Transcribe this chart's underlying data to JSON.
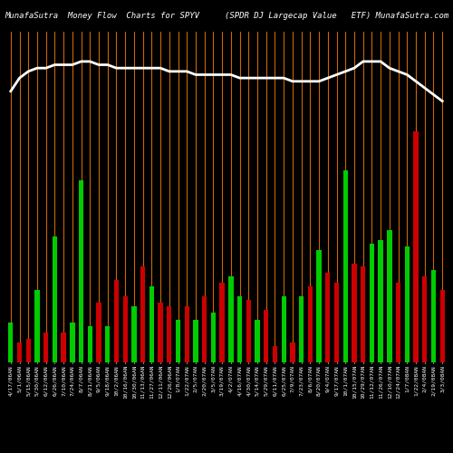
{
  "title_left": "MunafaSutra  Money Flow  Charts for SPYV",
  "title_right": "(SPDR DJ Largecap Value   ETF) MunafaSutra.com",
  "background_color": "#000000",
  "bar_colors": [
    "green",
    "red",
    "red",
    "green",
    "red",
    "green",
    "red",
    "green",
    "green",
    "green",
    "red",
    "green",
    "red",
    "red",
    "green",
    "red",
    "green",
    "red",
    "red",
    "green",
    "red",
    "green",
    "red",
    "green",
    "red",
    "green",
    "green",
    "red",
    "green",
    "red",
    "red",
    "green",
    "red",
    "green",
    "red",
    "green",
    "red",
    "red",
    "green",
    "red",
    "red",
    "green",
    "green",
    "green",
    "red",
    "green",
    "red",
    "red",
    "green",
    "red"
  ],
  "bar_heights": [
    0.12,
    0.06,
    0.07,
    0.22,
    0.09,
    0.38,
    0.09,
    0.12,
    0.55,
    0.11,
    0.18,
    0.11,
    0.25,
    0.2,
    0.17,
    0.29,
    0.23,
    0.18,
    0.17,
    0.13,
    0.17,
    0.13,
    0.2,
    0.15,
    0.24,
    0.26,
    0.2,
    0.19,
    0.13,
    0.16,
    0.05,
    0.2,
    0.06,
    0.2,
    0.23,
    0.34,
    0.27,
    0.24,
    0.58,
    0.3,
    0.29,
    0.36,
    0.37,
    0.4,
    0.24,
    0.35,
    0.7,
    0.26,
    0.28,
    0.22
  ],
  "line_values": [
    0.82,
    0.86,
    0.88,
    0.89,
    0.89,
    0.9,
    0.9,
    0.9,
    0.91,
    0.91,
    0.9,
    0.9,
    0.89,
    0.89,
    0.89,
    0.89,
    0.89,
    0.89,
    0.88,
    0.88,
    0.88,
    0.87,
    0.87,
    0.87,
    0.87,
    0.87,
    0.86,
    0.86,
    0.86,
    0.86,
    0.86,
    0.86,
    0.85,
    0.85,
    0.85,
    0.85,
    0.86,
    0.87,
    0.88,
    0.89,
    0.91,
    0.91,
    0.91,
    0.89,
    0.88,
    0.87,
    0.85,
    0.83,
    0.81,
    0.79
  ],
  "x_labels": [
    "4/17/06AN",
    "5/1/06AN",
    "5/15/06AN",
    "5/30/06AN",
    "6/12/06AN",
    "6/26/06AN",
    "7/10/06AN",
    "7/24/06AN",
    "8/7/06AN",
    "8/21/06AN",
    "9/5/06AN",
    "9/18/06AN",
    "10/2/06AN",
    "10/16/06AN",
    "10/30/06AN",
    "11/13/06AN",
    "11/27/06AN",
    "12/11/06AN",
    "12/26/06AN",
    "1/8/07AN",
    "1/22/07AN",
    "2/5/07AN",
    "2/20/07AN",
    "3/5/07AN",
    "3/19/07AN",
    "4/2/07AN",
    "4/16/07AN",
    "4/30/07AN",
    "5/14/07AN",
    "5/29/07AN",
    "6/11/07AN",
    "6/25/07AN",
    "7/9/07AN",
    "7/23/07AN",
    "8/6/07AN",
    "8/20/07AN",
    "9/4/07AN",
    "9/17/07AN",
    "10/1/07AN",
    "10/15/07AN",
    "10/29/07AN",
    "11/12/07AN",
    "11/26/07AN",
    "12/10/07AN",
    "12/24/07AN",
    "1/7/08AN",
    "1/22/08AN",
    "2/4/08AN",
    "2/19/08AN",
    "3/3/08AN"
  ],
  "ylim": [
    0,
    1.0
  ],
  "line_color": "#ffffff",
  "line_width": 2.0,
  "green_color": "#00cc00",
  "red_color": "#cc0000",
  "orange_color": "#cc6600",
  "title_fontsize": 6.5,
  "tick_fontsize": 4.5
}
